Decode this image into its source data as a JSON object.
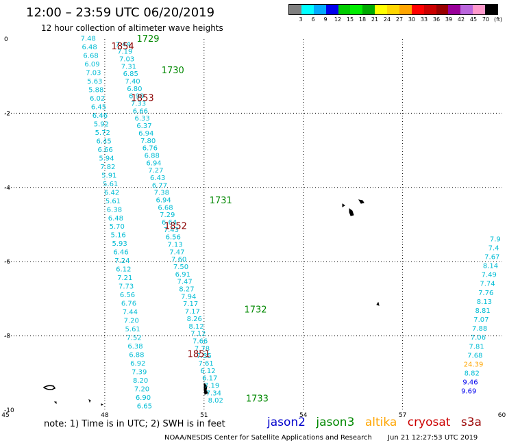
{
  "title": "12:00 – 23:59 UTC 06/20/2019",
  "subtitle": "12 hour collection of altimeter wave heights",
  "color_scale": {
    "colors": [
      "#808080",
      "#00ffff",
      "#00aaff",
      "#0000ee",
      "#00cc00",
      "#00ee00",
      "#00aa00",
      "#ffff00",
      "#ffd700",
      "#ffa500",
      "#ff0000",
      "#cc0000",
      "#990000",
      "#990099",
      "#bb66dd",
      "#ff99cc",
      "#000000"
    ],
    "labels": [
      "3",
      "6",
      "9",
      "12",
      "15",
      "18",
      "21",
      "24",
      "27",
      "30",
      "33",
      "36",
      "39",
      "42",
      "45",
      "70",
      "(ft)"
    ]
  },
  "axes": {
    "lon_ticks": [
      "45",
      "48",
      "51",
      "54",
      "57",
      "60"
    ],
    "lat_ticks": [
      "0",
      "-2",
      "-4",
      "-6",
      "-8",
      "-10"
    ]
  },
  "note": "note: 1) Time is in UTC; 2) SWH is in feet",
  "legend": [
    {
      "label": "jason2",
      "color": "#0000cc"
    },
    {
      "label": "jason3",
      "color": "#008800"
    },
    {
      "label": "altika",
      "color": "#ffa500"
    },
    {
      "label": "cryosat",
      "color": "#cc0000"
    },
    {
      "label": "s3a",
      "color": "#990000"
    }
  ],
  "credit": "NOAA/NESDIS Center for Satellite Applications and Research",
  "timestamp": "Jun 21 12:27:53 UTC 2019",
  "time_label_color": "#8b0000",
  "track_a": {
    "color": "#00bcd4",
    "values": [
      "7.48",
      "6.48",
      "6.68",
      "6.09",
      "7.03",
      "5.63",
      "5.88",
      "6.02",
      "6.45",
      "6.46",
      "5.92",
      "5.72",
      "6.45",
      "6.66",
      "5.94",
      "7.82",
      "5.91",
      "5.61",
      "6.42",
      "5.61",
      "6.38",
      "6.48",
      "5.70",
      "5.16",
      "5.93",
      "6.46",
      "7.24",
      "6.12",
      "7.21",
      "7.73",
      "6.56",
      "6.76",
      "7.44",
      "7.20",
      "5.61",
      "7.52",
      "6.38",
      "6.88",
      "6.92",
      "7.39",
      "8.20",
      "7.20",
      "6.90",
      "6.65"
    ],
    "times": [
      {
        "label": "1854",
        "lat": -0.2
      },
      {
        "label": "1853",
        "lat": -1.6
      },
      {
        "label": "1852",
        "lat": -5.0
      },
      {
        "label": "1851",
        "lat": -8.5
      }
    ]
  },
  "track_b": {
    "color": "#00bcd4",
    "values": [
      "7.44",
      "7.19",
      "7.03",
      "7.31",
      "6.85",
      "7.40",
      "6.80",
      "6.99",
      "7.33",
      "6.66",
      "6.33",
      "6.37",
      "6.94",
      "7.80",
      "6.76",
      "6.88",
      "6.94",
      "7.27",
      "6.43",
      "6.77",
      "7.38",
      "6.94",
      "6.68",
      "7.29",
      "6.64",
      "7.43",
      "6.56",
      "7.13",
      "7.47",
      "7.60",
      "7.50",
      "6.91",
      "7.47",
      "8.27",
      "7.94",
      "7.17",
      "7.17",
      "8.26",
      "8.12",
      "7.12",
      "7.66",
      "7.78",
      "7.35",
      "7.61",
      "6.12",
      "6.17",
      "7.19",
      "7.34",
      "8.02"
    ],
    "times": [
      {
        "label": "1729",
        "lat": 0.0
      },
      {
        "label": "1730",
        "lat": -0.8
      },
      {
        "label": "1731",
        "lat": -4.3
      },
      {
        "label": "1732",
        "lat": -7.2
      },
      {
        "label": "1733",
        "lat": -9.7
      }
    ]
  },
  "track_c": {
    "values": [
      {
        "v": "7.9",
        "color": "#00bcd4"
      },
      {
        "v": "7.4",
        "color": "#00bcd4"
      },
      {
        "v": "7.67",
        "color": "#00bcd4"
      },
      {
        "v": "8.14",
        "color": "#00bcd4"
      },
      {
        "v": "7.49",
        "color": "#00bcd4"
      },
      {
        "v": "7.74",
        "color": "#00bcd4"
      },
      {
        "v": "7.76",
        "color": "#00bcd4"
      },
      {
        "v": "8.13",
        "color": "#00bcd4"
      },
      {
        "v": "8.81",
        "color": "#00bcd4"
      },
      {
        "v": "7.07",
        "color": "#00bcd4"
      },
      {
        "v": "7.88",
        "color": "#00bcd4"
      },
      {
        "v": "7.06",
        "color": "#00bcd4"
      },
      {
        "v": "7.81",
        "color": "#00bcd4"
      },
      {
        "v": "7.68",
        "color": "#00bcd4"
      },
      {
        "v": "24.39",
        "color": "#ffa500"
      },
      {
        "v": "8.82",
        "color": "#00bcd4"
      },
      {
        "v": "9.46",
        "color": "#0000ee"
      },
      {
        "v": "9.69",
        "color": "#0000ee"
      }
    ]
  }
}
